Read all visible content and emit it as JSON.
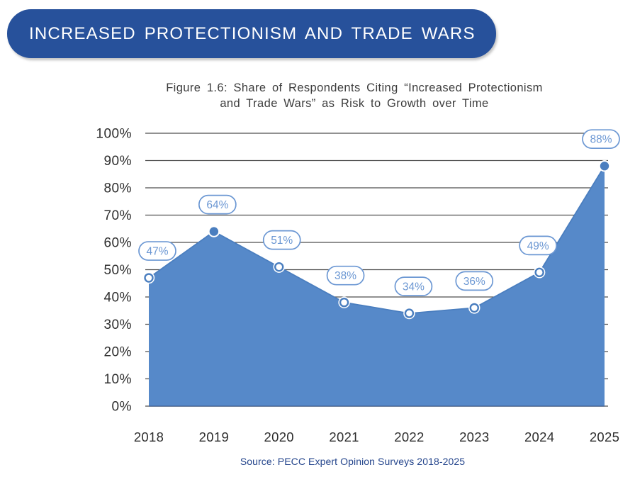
{
  "banner": {
    "label": "INCREASED PROTECTIONISM AND TRADE WARS",
    "bg_color": "#27519b",
    "text_color": "#ffffff"
  },
  "figure": {
    "title": "Figure 1.6: Share of Respondents Citing “Increased Protectionism\nand Trade Wars” as Risk to Growth over Time"
  },
  "chart_data": {
    "type": "area",
    "title": "Figure 1.6: Share of Respondents Citing “Increased Protectionism and Trade Wars” as Risk to Growth over Time",
    "categories": [
      "2018",
      "2019",
      "2020",
      "2021",
      "2022",
      "2023",
      "2024",
      "2025"
    ],
    "values": [
      47,
      64,
      51,
      38,
      34,
      36,
      49,
      88
    ],
    "labels": [
      "47%",
      "64%",
      "51%",
      "38%",
      "34%",
      "36%",
      "49%",
      "88%"
    ],
    "marker_filled": [
      false,
      true,
      false,
      false,
      false,
      false,
      false,
      true
    ],
    "xlabel": "",
    "ylabel": "",
    "ylim": [
      0,
      100
    ],
    "y_ticks": [
      "0%",
      "10%",
      "20%",
      "30%",
      "40%",
      "50%",
      "60%",
      "70%",
      "80%",
      "90%",
      "100%"
    ],
    "grid": true,
    "legend": "none",
    "area_color": "#5689c9",
    "line_color": "#4a7ebf",
    "marker_stroke_color": "#4a7ebf",
    "pill_color": "#6b97d3",
    "gridline_color": "#4f4f4f",
    "tick_label_color": "#2e2e2e",
    "baseline_color": "#3d5f93"
  },
  "source": {
    "text": "Source: PECC Expert Opinion Surveys 2018-2025",
    "color": "#24458c"
  }
}
